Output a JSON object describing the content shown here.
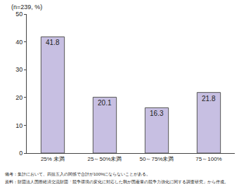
{
  "chart_data": {
    "type": "bar",
    "subtitle": "(n=239, %)",
    "categories": [
      "25% 未満",
      "25～50%未満",
      "50～75%未満",
      "75～100%"
    ],
    "values": [
      41.8,
      20.1,
      16.3,
      21.8
    ],
    "color": "#c7bfe2",
    "ylim": [
      0,
      50
    ],
    "yticks": [
      0,
      10,
      20,
      30,
      40,
      50
    ],
    "grid": false,
    "data_labels": true,
    "annotations": [
      "備考：集計において、四捨五入の関係で合計が100%にならないことがある。",
      "資料：財団法人国際経済交流財団「競争環境の変化に対応した我が国産業の競争力強化に関する調査研究」から作成。"
    ]
  }
}
